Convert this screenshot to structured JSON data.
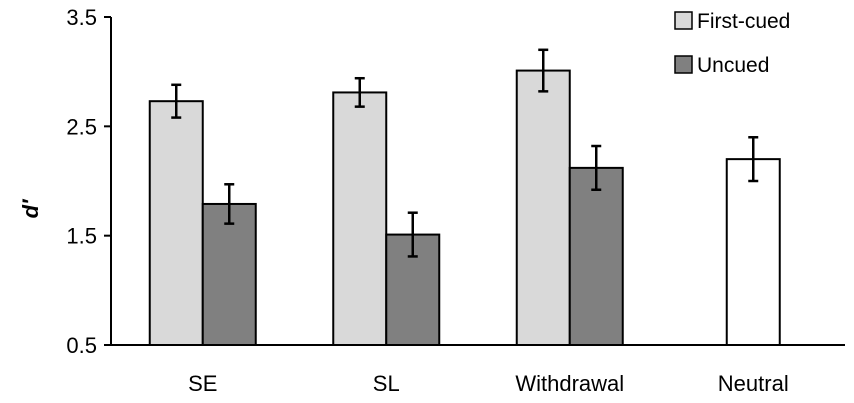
{
  "chart_data": {
    "type": "bar",
    "ylabel": "d′",
    "xlabel": "",
    "ylim": [
      0.5,
      3.5
    ],
    "yticks": [
      "0.5",
      "1.5",
      "2.5",
      "3.5"
    ],
    "ytick_values": [
      0.5,
      1.5,
      2.5,
      3.5
    ],
    "categories": [
      "SE",
      "SL",
      "Withdrawal",
      "Neutral"
    ],
    "series": [
      {
        "name": "First-cued",
        "color": "#d9d9d9",
        "values": [
          2.73,
          2.81,
          3.01,
          null
        ],
        "errors": [
          0.15,
          0.13,
          0.19,
          null
        ]
      },
      {
        "name": "Uncued",
        "color": "#808080",
        "values": [
          1.79,
          1.51,
          2.12,
          null
        ],
        "errors": [
          0.18,
          0.2,
          0.2,
          null
        ]
      }
    ],
    "extra_bars": [
      {
        "category": "Neutral",
        "color": "#ffffff",
        "value": 2.2,
        "error": 0.2
      }
    ],
    "legend_position": "top-right",
    "grid": false
  }
}
